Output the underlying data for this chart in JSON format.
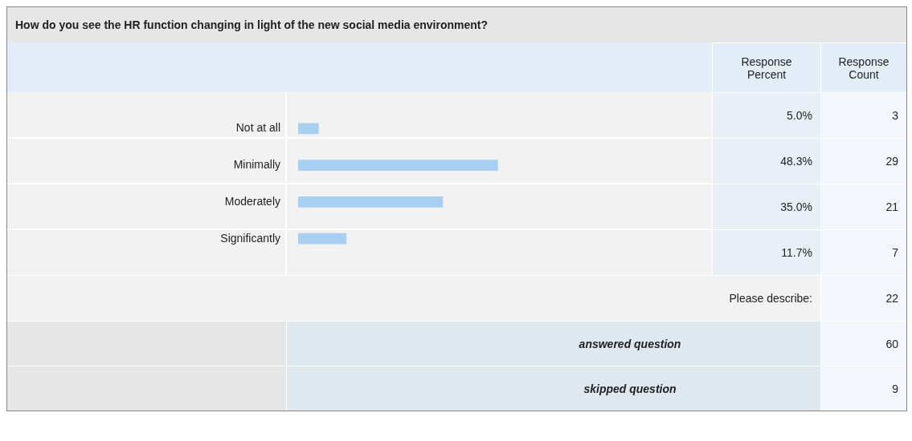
{
  "chart_data": {
    "type": "bar",
    "orientation": "horizontal",
    "title": "How do you see the HR function changing in light of the new social media environment?",
    "categories": [
      "Not at all",
      "Minimally",
      "Moderately",
      "Significantly"
    ],
    "values": [
      5.0,
      48.3,
      35.0,
      11.7
    ],
    "value_labels": [
      "5.0%",
      "48.3%",
      "35.0%",
      "11.7%"
    ],
    "color": "#a9cff2",
    "xlim": [
      0,
      100
    ],
    "tick_labels": "y",
    "annotations": [
      "Response Percent",
      "Response Count",
      "3",
      "29",
      "21",
      "7",
      "Please describe:",
      "22",
      "answered question",
      "60",
      "skipped question",
      "9"
    ]
  }
}
